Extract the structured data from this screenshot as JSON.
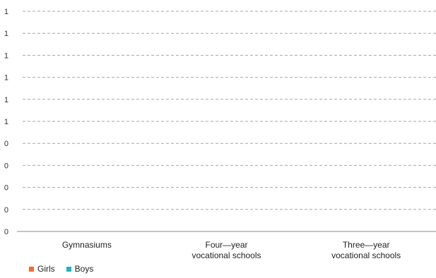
{
  "chart_data": {
    "type": "bar",
    "categories": [
      "Gymnasiums",
      "Four—year vocational schools",
      "Three—year vocational schools"
    ],
    "category_lines": [
      [
        "Gymnasiums"
      ],
      [
        "Four—year",
        "vocational schools"
      ],
      [
        "Three—year",
        "vocational schools"
      ]
    ],
    "series": [
      {
        "name": "Girls",
        "color": "#f26b3a",
        "values": [
          0,
          0,
          0
        ]
      },
      {
        "name": "Boys",
        "color": "#1fb5c1",
        "values": [
          0,
          0,
          0
        ]
      }
    ],
    "y_tick_labels": [
      "0",
      "0",
      "0",
      "0",
      "0",
      "1",
      "1",
      "1",
      "1",
      "1",
      "1"
    ],
    "ylim": [
      0,
      1
    ],
    "grid": true,
    "legend_position": "bottom-left",
    "title": "",
    "xlabel": "",
    "ylabel": ""
  }
}
